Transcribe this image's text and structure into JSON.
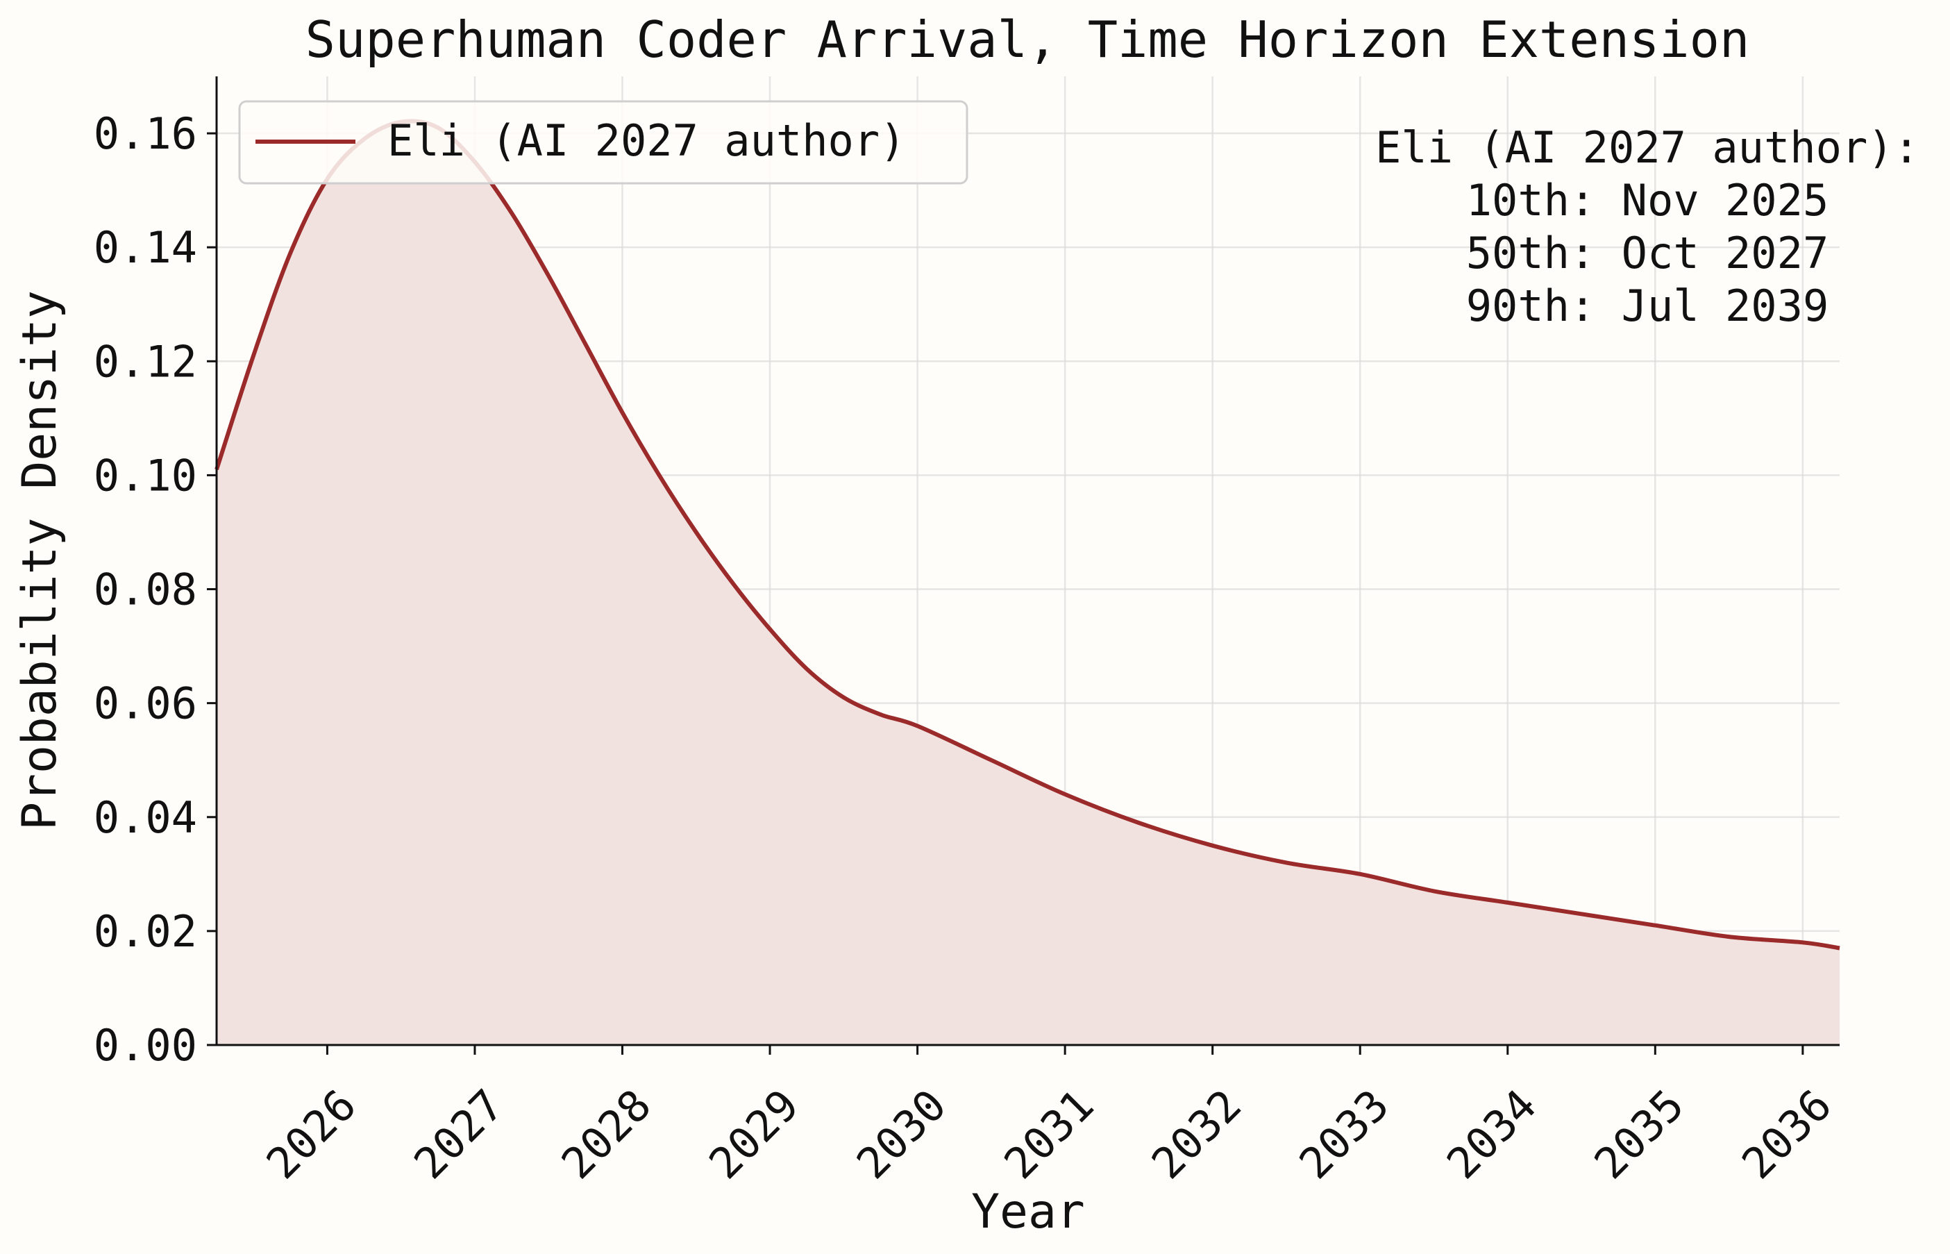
{
  "chart_data": {
    "type": "area",
    "title": "Superhuman Coder Arrival, Time Horizon Extension",
    "xlabel": "Year",
    "ylabel": "Probability Density",
    "xlim": [
      2025.25,
      2036.25
    ],
    "ylim": [
      0,
      0.17
    ],
    "x_ticks": [
      2026,
      2027,
      2028,
      2029,
      2030,
      2031,
      2032,
      2033,
      2034,
      2035,
      2036
    ],
    "y_ticks": [
      0.0,
      0.02,
      0.04,
      0.06,
      0.08,
      0.1,
      0.12,
      0.14,
      0.16
    ],
    "y_tick_labels": [
      "0.00",
      "0.02",
      "0.04",
      "0.06",
      "0.08",
      "0.10",
      "0.12",
      "0.14",
      "0.16"
    ],
    "grid": true,
    "legend_position": "top-left",
    "series": [
      {
        "name": "Eli (AI 2027 author)",
        "color": "#9b2a2a",
        "fill_color": "#f2e2df",
        "x": [
          2025.25,
          2025.5,
          2025.75,
          2026.0,
          2026.25,
          2026.5,
          2026.75,
          2027.0,
          2027.25,
          2027.5,
          2027.75,
          2028.0,
          2028.25,
          2028.5,
          2028.75,
          2029.0,
          2029.25,
          2029.5,
          2029.75,
          2030.0,
          2030.5,
          2031.0,
          2031.5,
          2032.0,
          2032.5,
          2033.0,
          2033.5,
          2034.0,
          2034.5,
          2035.0,
          2035.5,
          2036.0,
          2036.25
        ],
        "y": [
          0.101,
          0.121,
          0.139,
          0.152,
          0.159,
          0.162,
          0.161,
          0.155,
          0.146,
          0.135,
          0.123,
          0.111,
          0.1,
          0.09,
          0.081,
          0.073,
          0.066,
          0.061,
          0.058,
          0.056,
          0.05,
          0.044,
          0.039,
          0.035,
          0.032,
          0.03,
          0.027,
          0.025,
          0.023,
          0.021,
          0.019,
          0.018,
          0.017
        ]
      }
    ],
    "annotation": {
      "title": "Eli (AI 2027 author):",
      "lines": [
        "10th: Nov 2025",
        "50th: Oct 2027",
        "90th: Jul 2039"
      ]
    }
  }
}
